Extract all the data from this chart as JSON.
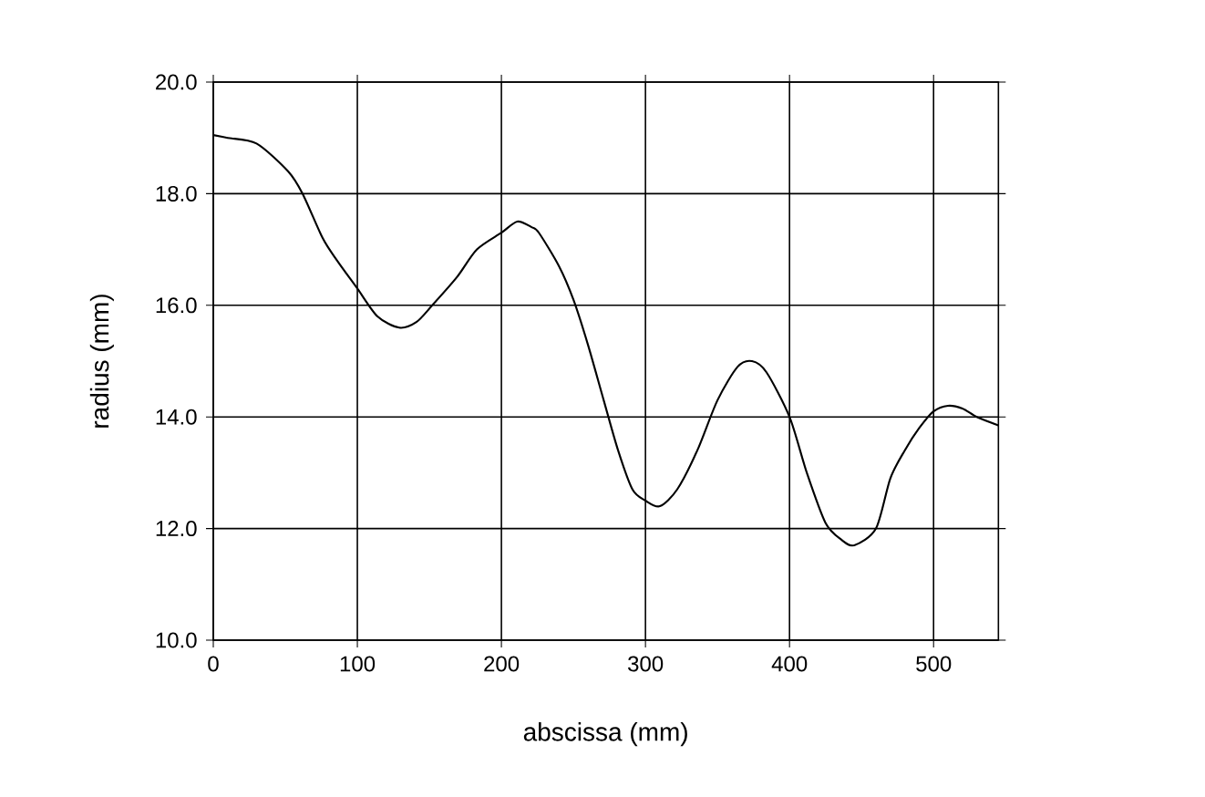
{
  "chart_data": {
    "type": "line",
    "xlabel": "abscissa (mm)",
    "ylabel": "radius (mm)",
    "x": [
      0,
      10,
      30,
      52,
      62,
      76,
      86,
      100,
      114,
      129,
      141,
      152,
      169,
      183,
      200,
      211,
      221,
      226,
      240,
      250,
      260,
      271,
      281,
      291,
      300,
      310,
      322,
      336,
      350,
      364,
      374,
      384,
      400,
      412,
      425,
      436,
      445,
      460,
      470,
      480,
      490,
      500,
      510,
      520,
      530,
      545
    ],
    "series": [
      {
        "color": "#000000",
        "values": [
          19.05,
          19.0,
          18.9,
          18.4,
          18.0,
          17.2,
          16.8,
          16.3,
          15.8,
          15.6,
          15.7,
          16.0,
          16.5,
          17.0,
          17.3,
          17.5,
          17.4,
          17.3,
          16.7,
          16.1,
          15.3,
          14.3,
          13.4,
          12.7,
          12.5,
          12.4,
          12.7,
          13.4,
          14.3,
          14.9,
          15.0,
          14.8,
          14.0,
          13.0,
          12.1,
          11.8,
          11.7,
          12.0,
          12.9,
          13.4,
          13.8,
          14.1,
          14.2,
          14.15,
          14.0,
          13.85
        ]
      }
    ],
    "xlim": [
      0,
      545
    ],
    "ylim": [
      10,
      20
    ],
    "xticks": [
      0,
      100,
      200,
      300,
      400,
      500
    ],
    "yticks": [
      {
        "value": 10,
        "label": "10.0"
      },
      {
        "value": 12,
        "label": "12.0"
      },
      {
        "value": 14,
        "label": "14.0"
      },
      {
        "value": 16,
        "label": "16.0"
      },
      {
        "value": 18,
        "label": "18.0"
      },
      {
        "value": 20,
        "label": "20.0"
      }
    ],
    "grid": true,
    "marker": "none",
    "line_style": "solid"
  }
}
